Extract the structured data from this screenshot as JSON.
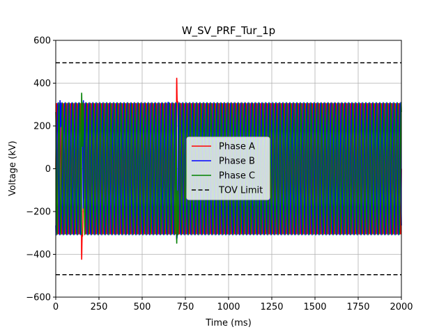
{
  "chart_data": {
    "type": "line",
    "title": "W_SV_PRF_Tur_1p",
    "xlabel": "Time (ms)",
    "ylabel": "Voltage (kV)",
    "xlim": [
      0,
      2000
    ],
    "ylim": [
      -600,
      600
    ],
    "xticks": [
      0,
      250,
      500,
      750,
      1000,
      1250,
      1500,
      1750,
      2000
    ],
    "yticks": [
      -600,
      -400,
      -200,
      0,
      200,
      400,
      600
    ],
    "grid": true,
    "legend_position": "center",
    "frequency_hz": 50,
    "steady_amplitude_kv": 306,
    "series": [
      {
        "name": "Phase A",
        "color": "#ff0000",
        "phase_deg": 0,
        "transients": [
          {
            "t": 150,
            "v": -425
          },
          {
            "t": 700,
            "v": 425
          }
        ]
      },
      {
        "name": "Phase B",
        "color": "#0000ff",
        "phase_deg": -120,
        "transients": [
          {
            "t": 25,
            "v": 320
          },
          {
            "t": 160,
            "v": 320
          },
          {
            "t": 650,
            "v": 310
          },
          {
            "t": 700,
            "v": -330
          }
        ]
      },
      {
        "name": "Phase C",
        "color": "#008000",
        "phase_deg": 120,
        "transients": [
          {
            "t": 150,
            "v": 355
          },
          {
            "t": 700,
            "v": -350
          }
        ]
      }
    ],
    "reference_lines": [
      {
        "name": "TOV Limit",
        "color": "#000000",
        "style": "dashed",
        "values": [
          495,
          -495
        ]
      }
    ]
  }
}
